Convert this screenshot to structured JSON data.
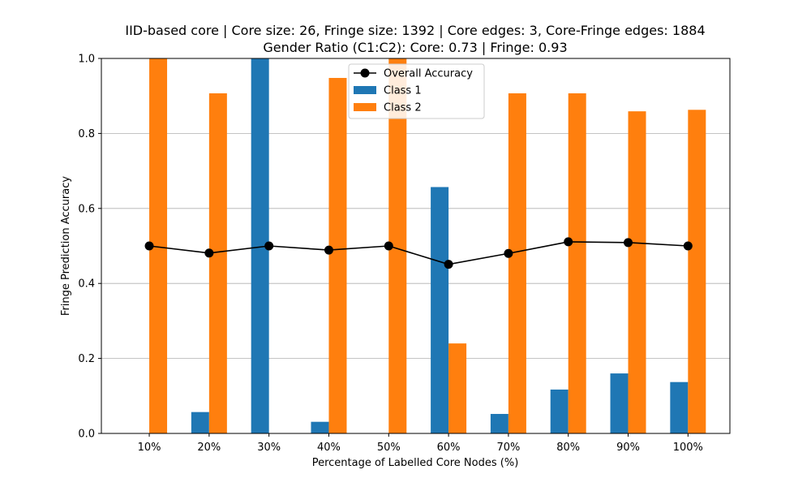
{
  "chart_data": {
    "type": "bar",
    "title_line1": "IID-based core | Core size: 26, Fringe size: 1392 | Core edges: 3, Core-Fringe edges: 1884",
    "title_line2": "Gender Ratio (C1:C2): Core: 0.73 | Fringe: 0.93",
    "xlabel": "Percentage of Labelled Core Nodes (%)",
    "ylabel": "Fringe Prediction Accuracy",
    "ylim": [
      0,
      1.0
    ],
    "yticks": [
      "0.0",
      "0.2",
      "0.4",
      "0.6",
      "0.8",
      "1.0"
    ],
    "grid": "horizontal",
    "legend_position": "top-center",
    "categories": [
      "10%",
      "20%",
      "30%",
      "40%",
      "50%",
      "60%",
      "70%",
      "80%",
      "90%",
      "100%"
    ],
    "series": [
      {
        "name": "Class 1",
        "kind": "bar",
        "color": "#1f77b4",
        "values": [
          0.0,
          0.057,
          1.0,
          0.031,
          0.0,
          0.657,
          0.052,
          0.117,
          0.16,
          0.137
        ]
      },
      {
        "name": "Class 2",
        "kind": "bar",
        "color": "#ff7f0e",
        "values": [
          1.0,
          0.907,
          0.0,
          0.948,
          1.0,
          0.24,
          0.907,
          0.907,
          0.859,
          0.863
        ]
      },
      {
        "name": "Overall Accuracy",
        "kind": "line",
        "color": "#000000",
        "values": [
          0.5,
          0.481,
          0.5,
          0.489,
          0.5,
          0.451,
          0.48,
          0.511,
          0.509,
          0.5
        ]
      }
    ]
  }
}
